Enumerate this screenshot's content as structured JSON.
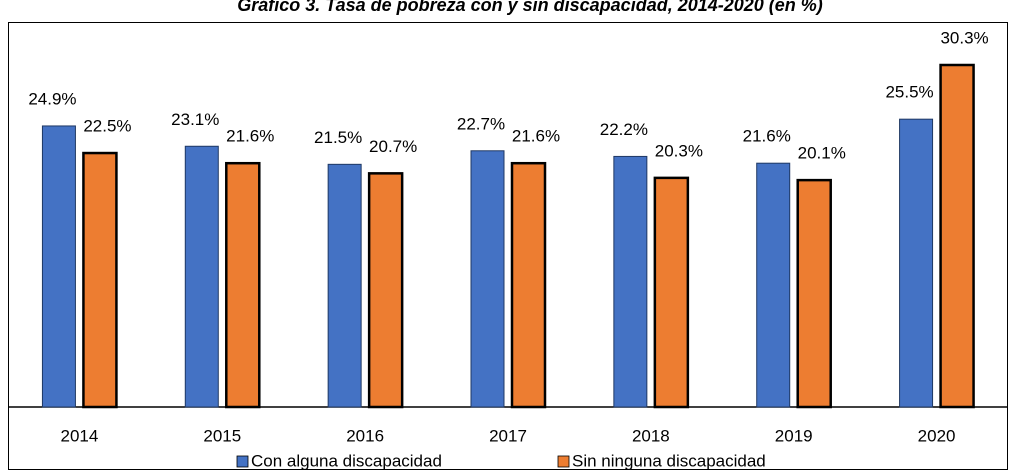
{
  "chart_data": {
    "type": "bar",
    "title": "Gráfico 3. Tasa de pobreza con y sin discapacidad, 2014-2020 (en %)",
    "categories": [
      "2014",
      "2015",
      "2016",
      "2017",
      "2018",
      "2019",
      "2020"
    ],
    "series": [
      {
        "name": "Con alguna discapacidad",
        "color": "#4472c4",
        "values": [
          24.9,
          23.1,
          21.5,
          22.7,
          22.2,
          21.6,
          25.5
        ],
        "value_labels": [
          "24.9%",
          "23.1%",
          "21.5%",
          "22.7%",
          "22.2%",
          "21.6%",
          "25.5%"
        ]
      },
      {
        "name": "Sin ninguna discapacidad",
        "color": "#ed7d31",
        "values": [
          22.5,
          21.6,
          20.7,
          21.6,
          20.3,
          20.1,
          30.3
        ],
        "value_labels": [
          "22.5%",
          "21.6%",
          "20.7%",
          "21.6%",
          "20.3%",
          "20.1%",
          "30.3%"
        ]
      }
    ],
    "legend": "bottom"
  }
}
